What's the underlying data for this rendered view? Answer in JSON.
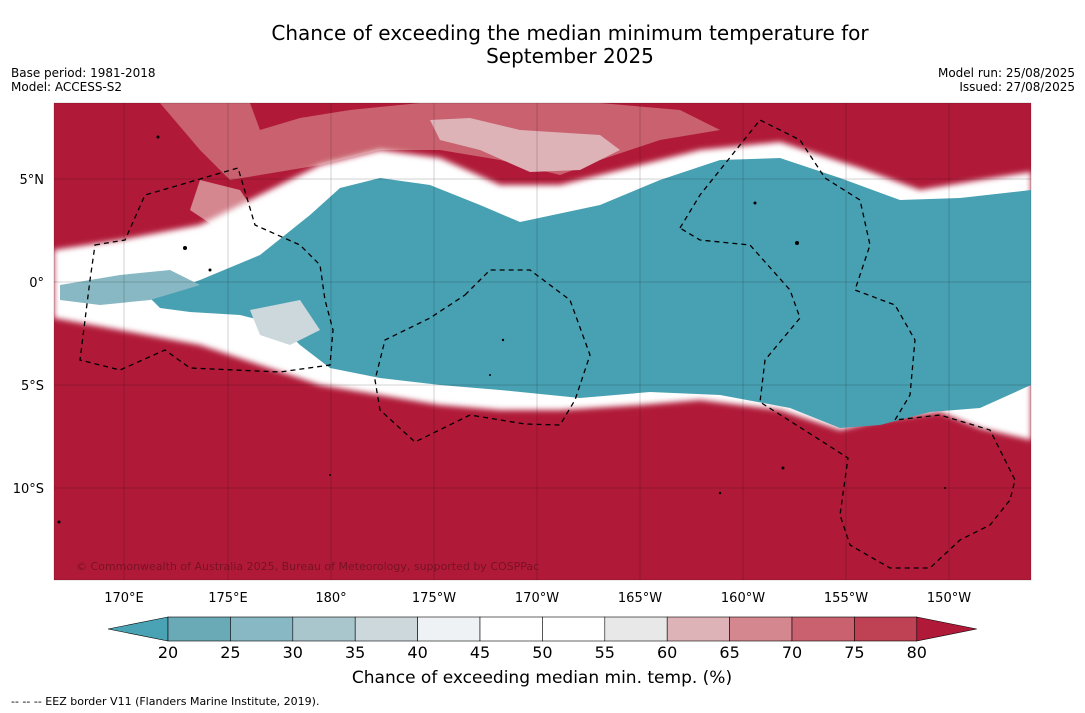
{
  "title_line1": "Chance of exceeding the median minimum temperature for",
  "title_line2": "September 2025",
  "base_period": "Base period: 1981-2018",
  "model": "Model: ACCESS-S2",
  "model_run": "Model run: 25/08/2025",
  "issued": "Issued: 27/08/2025",
  "copyright": "© Commonwealth of Australia 2025, Bureau of Meteorology, supported by COSPPac",
  "lat_labels": [
    "5°N",
    "0°",
    "5°S",
    "10°S"
  ],
  "lon_labels": [
    "170°E",
    "175°E",
    "180°",
    "175°W",
    "170°W",
    "165°W",
    "160°W",
    "155°W",
    "150°W"
  ],
  "colorbar": {
    "ticks": [
      "20",
      "25",
      "30",
      "35",
      "40",
      "45",
      "50",
      "55",
      "60",
      "65",
      "70",
      "75",
      "80"
    ],
    "colors": [
      "#4aa3b4",
      "#6aaab7",
      "#88b8c3",
      "#a8c6cc",
      "#ccd8dc",
      "#eef2f4",
      "#ffffff",
      "#ffffff",
      "#e8e8e8",
      "#deb3b8",
      "#d58790",
      "#c9626e",
      "#be4253",
      "#b01a38"
    ],
    "title": "Chance of exceeding median min. temp. (%)"
  },
  "footer": "--  --  -- EEZ border V11 (Flanders Marine Institute, 2019).",
  "colors": {
    "high": "#b01a38",
    "low": "#48a1b3",
    "white": "#ffffff"
  }
}
